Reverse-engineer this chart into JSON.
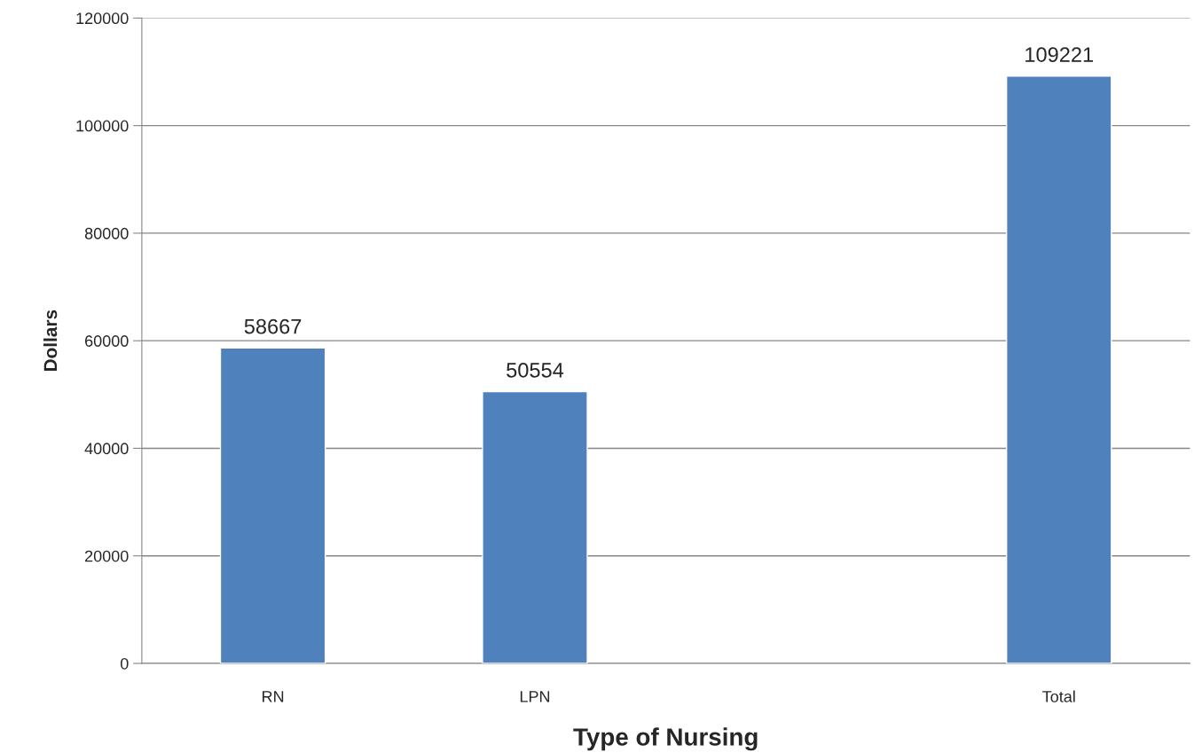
{
  "chart_data": {
    "type": "bar",
    "xlabel": "Type of Nursing",
    "ylabel": "Dollars",
    "categories": [
      "RN",
      "LPN",
      null,
      "Total"
    ],
    "values": [
      58667,
      50554,
      null,
      109221
    ],
    "color": "#4f81bd",
    "ylim": [
      0,
      120000
    ],
    "yticks": [
      0,
      20000,
      40000,
      60000,
      80000,
      100000,
      120000
    ],
    "grid": "y",
    "data_labels": true
  }
}
